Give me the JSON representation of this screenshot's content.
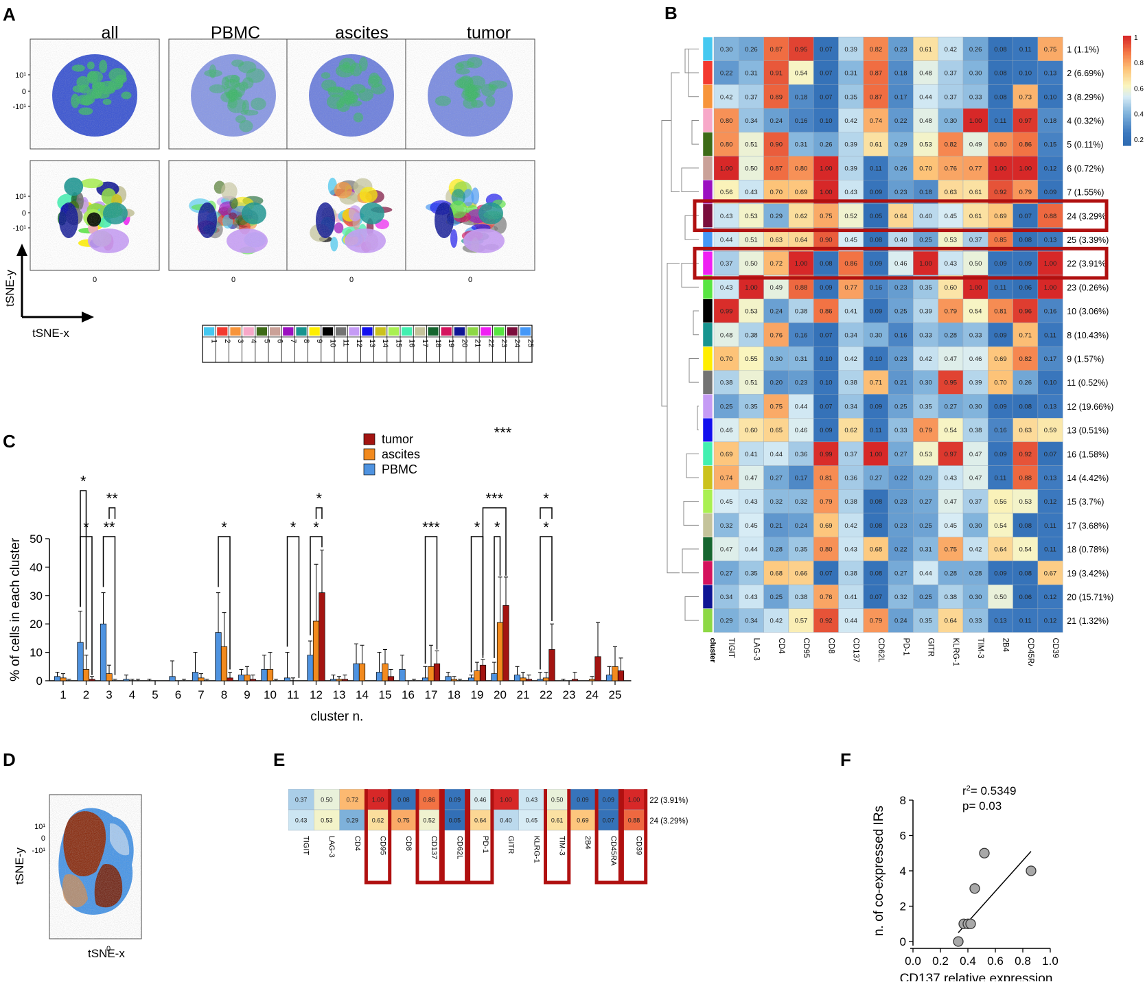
{
  "panel_labels": [
    "A",
    "B",
    "C",
    "D",
    "E",
    "F"
  ],
  "panelA": {
    "columns": [
      "all",
      "PBMC",
      "ascites",
      "tumor"
    ],
    "ytick_labels": [
      "10¹",
      "0",
      "-10¹"
    ],
    "xtick_label": "0",
    "axis_x": "tSNE-x",
    "axis_y": "tSNE-y",
    "legend_numbers": [
      "1",
      "2",
      "3",
      "4",
      "5",
      "6",
      "7",
      "8",
      "9",
      "10",
      "11",
      "12",
      "13",
      "14",
      "15",
      "16",
      "17",
      "18",
      "19",
      "20",
      "21",
      "22",
      "23",
      "24",
      "25"
    ],
    "cluster_colors": [
      "#45c8f0",
      "#f33a2f",
      "#f7943a",
      "#f7a8c8",
      "#3d6b17",
      "#caa198",
      "#9b10c0",
      "#17948f",
      "#ffee00",
      "#000000",
      "#737373",
      "#c59bf5",
      "#1210ee",
      "#cbc21c",
      "#a9f052",
      "#42f0b0",
      "#c4c39a",
      "#166630",
      "#d4135d",
      "#0e1594",
      "#8dd845",
      "#ef20f3",
      "#58e542",
      "#7b0d3c",
      "#4598f7"
    ]
  },
  "panelB": {
    "markers": [
      "TIGIT",
      "LAG-3",
      "CD4",
      "CD95",
      "CD8",
      "CD137",
      "CD62L",
      "PD-1",
      "GITR",
      "KLRG-1",
      "TIM-3",
      "2B4",
      "CD45RA",
      "CD39"
    ],
    "cluster_col_label": "cluster",
    "colorbar_ticks": [
      "1",
      "0.8",
      "0.6",
      "0.4",
      "0.2"
    ],
    "rows": [
      {
        "label": "1 (1.1%)",
        "color": "#45c8f0",
        "values": [
          0.3,
          0.26,
          0.87,
          0.95,
          0.07,
          0.39,
          0.82,
          0.23,
          0.61,
          0.42,
          0.26,
          0.08,
          0.11,
          0.75
        ]
      },
      {
        "label": "2 (6.69%)",
        "color": "#f33a2f",
        "values": [
          0.22,
          0.31,
          0.91,
          0.54,
          0.07,
          0.31,
          0.87,
          0.18,
          0.48,
          0.37,
          0.3,
          0.08,
          0.1,
          0.13
        ]
      },
      {
        "label": "3 (8.29%)",
        "color": "#f7943a",
        "values": [
          0.42,
          0.37,
          0.89,
          0.18,
          0.07,
          0.35,
          0.87,
          0.17,
          0.44,
          0.37,
          0.33,
          0.08,
          0.73,
          0.1
        ]
      },
      {
        "label": "4 (0.32%)",
        "color": "#f7a8c8",
        "values": [
          0.8,
          0.34,
          0.24,
          0.16,
          0.1,
          0.42,
          0.74,
          0.22,
          0.48,
          0.3,
          1.0,
          0.11,
          0.97,
          0.18
        ]
      },
      {
        "label": "5 (0.11%)",
        "color": "#3d6b17",
        "values": [
          0.8,
          0.51,
          0.9,
          0.31,
          0.26,
          0.39,
          0.61,
          0.29,
          0.53,
          0.82,
          0.49,
          0.8,
          0.86,
          0.15
        ]
      },
      {
        "label": "6 (0.72%)",
        "color": "#caa198",
        "values": [
          1.0,
          0.5,
          0.87,
          0.8,
          1.0,
          0.39,
          0.11,
          0.26,
          0.7,
          0.76,
          0.77,
          1.0,
          1.0,
          0.12
        ]
      },
      {
        "label": "7 (1.55%)",
        "color": "#9b10c0",
        "values": [
          0.56,
          0.43,
          0.7,
          0.69,
          1.0,
          0.43,
          0.09,
          0.23,
          0.18,
          0.63,
          0.61,
          0.92,
          0.79,
          0.09
        ]
      },
      {
        "label": "24 (3.29%)",
        "color": "#7b0d3c",
        "values": [
          0.43,
          0.53,
          0.29,
          0.62,
          0.75,
          0.52,
          0.05,
          0.64,
          0.4,
          0.45,
          0.61,
          0.69,
          0.07,
          0.88
        ]
      },
      {
        "label": "25 (3.39%)",
        "color": "#4598f7",
        "values": [
          0.44,
          0.51,
          0.63,
          0.64,
          0.9,
          0.45,
          0.08,
          0.4,
          0.25,
          0.53,
          0.37,
          0.85,
          0.08,
          0.13
        ]
      },
      {
        "label": "22 (3.91%)",
        "color": "#ef20f3",
        "values": [
          0.37,
          0.5,
          0.72,
          1.0,
          0.08,
          0.86,
          0.09,
          0.46,
          1.0,
          0.43,
          0.5,
          0.09,
          0.09,
          1.0
        ]
      },
      {
        "label": "23 (0.26%)",
        "color": "#58e542",
        "values": [
          0.43,
          1.0,
          0.49,
          0.88,
          0.09,
          0.77,
          0.16,
          0.23,
          0.35,
          0.6,
          1.0,
          0.11,
          0.06,
          1.0
        ]
      },
      {
        "label": "10 (3.06%)",
        "color": "#000000",
        "values": [
          0.99,
          0.53,
          0.24,
          0.38,
          0.86,
          0.41,
          0.09,
          0.25,
          0.39,
          0.79,
          0.54,
          0.81,
          0.96,
          0.16
        ]
      },
      {
        "label": "8 (10.43%)",
        "color": "#17948f",
        "values": [
          0.48,
          0.38,
          0.76,
          0.16,
          0.07,
          0.34,
          0.3,
          0.16,
          0.33,
          0.28,
          0.33,
          0.09,
          0.71,
          0.11
        ]
      },
      {
        "label": "9 (1.57%)",
        "color": "#ffee00",
        "values": [
          0.7,
          0.55,
          0.3,
          0.31,
          0.1,
          0.42,
          0.1,
          0.23,
          0.42,
          0.47,
          0.46,
          0.69,
          0.82,
          0.17
        ]
      },
      {
        "label": "11 (0.52%)",
        "color": "#737373",
        "values": [
          0.38,
          0.51,
          0.2,
          0.23,
          0.1,
          0.38,
          0.71,
          0.21,
          0.3,
          0.95,
          0.39,
          0.7,
          0.26,
          0.1
        ]
      },
      {
        "label": "12 (19.66%)",
        "color": "#c59bf5",
        "values": [
          0.25,
          0.35,
          0.75,
          0.44,
          0.07,
          0.34,
          0.09,
          0.25,
          0.35,
          0.27,
          0.3,
          0.09,
          0.08,
          0.13
        ]
      },
      {
        "label": "13 (0.51%)",
        "color": "#1210ee",
        "values": [
          0.46,
          0.6,
          0.65,
          0.46,
          0.09,
          0.62,
          0.11,
          0.33,
          0.79,
          0.54,
          0.38,
          0.16,
          0.63,
          0.59
        ]
      },
      {
        "label": "16 (1.58%)",
        "color": "#42f0b0",
        "values": [
          0.69,
          0.41,
          0.44,
          0.36,
          0.99,
          0.37,
          1.0,
          0.27,
          0.53,
          0.97,
          0.47,
          0.09,
          0.92,
          0.07
        ]
      },
      {
        "label": "14 (4.42%)",
        "color": "#cbc21c",
        "values": [
          0.74,
          0.47,
          0.27,
          0.17,
          0.81,
          0.36,
          0.27,
          0.22,
          0.29,
          0.43,
          0.47,
          0.11,
          0.88,
          0.13
        ]
      },
      {
        "label": "15 (3.7%)",
        "color": "#a9f052",
        "values": [
          0.45,
          0.43,
          0.32,
          0.32,
          0.79,
          0.38,
          0.08,
          0.23,
          0.27,
          0.47,
          0.37,
          0.56,
          0.53,
          0.12
        ]
      },
      {
        "label": "17 (3.68%)",
        "color": "#c4c39a",
        "values": [
          0.32,
          0.45,
          0.21,
          0.24,
          0.69,
          0.42,
          0.08,
          0.23,
          0.25,
          0.45,
          0.3,
          0.54,
          0.08,
          0.11
        ]
      },
      {
        "label": "18 (0.78%)",
        "color": "#166630",
        "values": [
          0.47,
          0.44,
          0.28,
          0.35,
          0.8,
          0.43,
          0.68,
          0.22,
          0.31,
          0.75,
          0.42,
          0.64,
          0.54,
          0.11
        ]
      },
      {
        "label": "19 (3.42%)",
        "color": "#d4135d",
        "values": [
          0.27,
          0.35,
          0.68,
          0.66,
          0.07,
          0.38,
          0.08,
          0.27,
          0.44,
          0.28,
          0.28,
          0.09,
          0.08,
          0.67
        ]
      },
      {
        "label": "20 (15.71%)",
        "color": "#0e1594",
        "values": [
          0.34,
          0.43,
          0.25,
          0.38,
          0.76,
          0.41,
          0.07,
          0.32,
          0.25,
          0.38,
          0.3,
          0.5,
          0.06,
          0.12
        ]
      },
      {
        "label": "21 (1.32%)",
        "color": "#8dd845",
        "values": [
          0.29,
          0.34,
          0.42,
          0.57,
          0.92,
          0.44,
          0.79,
          0.24,
          0.35,
          0.64,
          0.33,
          0.13,
          0.11,
          0.12
        ]
      }
    ]
  },
  "chart_data": [
    {
      "type": "bar",
      "panel": "C",
      "categories": [
        "1",
        "2",
        "3",
        "4",
        "5",
        "6",
        "7",
        "8",
        "9",
        "10",
        "11",
        "12",
        "13",
        "14",
        "15",
        "16",
        "17",
        "18",
        "19",
        "20",
        "21",
        "22",
        "23",
        "24",
        "25"
      ],
      "series": [
        {
          "name": "PBMC",
          "color": "#4f93e0",
          "values": [
            1.5,
            13.5,
            20,
            0.5,
            0,
            1.5,
            3,
            17,
            2,
            4,
            1,
            9,
            0.5,
            6,
            3,
            4,
            1,
            1.5,
            1,
            2.5,
            2,
            0.5,
            0,
            0,
            2
          ],
          "errors": [
            1.5,
            11,
            11,
            1.5,
            0.5,
            5.5,
            7,
            14,
            2,
            5,
            9,
            5,
            1.5,
            7,
            7,
            5,
            4,
            1.5,
            1,
            4,
            3,
            2.5,
            0.5,
            0,
            3
          ]
        },
        {
          "name": "ascites",
          "color": "#f28a1e",
          "values": [
            1,
            4,
            2.5,
            0,
            0,
            0,
            1,
            12,
            2,
            4,
            0,
            21,
            0.5,
            6,
            6,
            0,
            5,
            0.5,
            3.5,
            20.5,
            1,
            1,
            0,
            0.5,
            5
          ],
          "errors": [
            1.5,
            5,
            3,
            0.5,
            0,
            0,
            1.5,
            12,
            3,
            6,
            1,
            20,
            1,
            6.5,
            5,
            0,
            7.5,
            1,
            3,
            16,
            2,
            2,
            0,
            1,
            7
          ]
        },
        {
          "name": "tumor",
          "color": "#a31411",
          "values": [
            0,
            0.5,
            0,
            0,
            0,
            0,
            0,
            1,
            0.5,
            0,
            0,
            31,
            0.5,
            0,
            1.5,
            0,
            6,
            0,
            5.5,
            26.5,
            0.5,
            11,
            0.5,
            8.5,
            3.5
          ],
          "errors": [
            0.5,
            1,
            0.5,
            0.5,
            0,
            0.5,
            0.5,
            2,
            1.5,
            0.5,
            0,
            15,
            1.5,
            0,
            2.5,
            0.5,
            4.5,
            0.5,
            2,
            10,
            1.5,
            9,
            2.5,
            12,
            4.5
          ]
        }
      ],
      "ylabel": "% of cells in each cluster",
      "xlabel": "cluster n.",
      "ylim": [
        0,
        50
      ],
      "yticks": [
        0,
        10,
        20,
        30,
        40,
        50
      ],
      "legend": [
        "tumor",
        "ascites",
        "PBMC"
      ],
      "significance": [
        {
          "cluster": "2",
          "pair": "PBMC-ascites",
          "label": "*"
        },
        {
          "cluster": "2",
          "pair": "PBMC-tumor",
          "label": "*"
        },
        {
          "cluster": "3",
          "pair": "ascites-tumor",
          "label": "**"
        },
        {
          "cluster": "3",
          "pair": "PBMC-tumor",
          "label": "**"
        },
        {
          "cluster": "8",
          "pair": "PBMC-tumor",
          "label": "*"
        },
        {
          "cluster": "11",
          "pair": "PBMC-tumor",
          "label": "*"
        },
        {
          "cluster": "12",
          "pair": "PBMC-tumor",
          "label": "*"
        },
        {
          "cluster": "12",
          "pair": "ascites-tumor",
          "label": "*"
        },
        {
          "cluster": "17",
          "pair": "PBMC-tumor",
          "label": "***"
        },
        {
          "cluster": "19",
          "pair": "PBMC-tumor",
          "label": "*"
        },
        {
          "cluster": "19-20",
          "pair": "tumor",
          "label": "***"
        },
        {
          "cluster": "20",
          "pair": "PBMC-ascites",
          "label": "*"
        },
        {
          "cluster": "20",
          "pair": "PBMC-tumor",
          "label": "***"
        },
        {
          "cluster": "22",
          "pair": "PBMC-tumor",
          "label": "*"
        },
        {
          "cluster": "22",
          "pair": "ascites-tumor",
          "label": "*"
        }
      ]
    },
    {
      "type": "scatter",
      "panel": "F",
      "points": [
        [
          0.33,
          0
        ],
        [
          0.37,
          1
        ],
        [
          0.4,
          1
        ],
        [
          0.42,
          1
        ],
        [
          0.45,
          3
        ],
        [
          0.52,
          5
        ],
        [
          0.86,
          4
        ]
      ],
      "fit_line": [
        [
          0.33,
          0.5
        ],
        [
          0.86,
          5.1
        ]
      ],
      "xlabel": "CD137 relative expression",
      "ylabel": "n. of co-expressed IRs",
      "xlim": [
        0,
        1.0
      ],
      "ylim": [
        0,
        8
      ],
      "xticks": [
        "0.0",
        "0.2",
        "0.4",
        "0.6",
        "0.8",
        "1.0"
      ],
      "yticks": [
        "0",
        "2",
        "4",
        "6",
        "8"
      ],
      "stat_r2_label": "r",
      "stat_r2_sup": "2",
      "stat_r2_value": "= 0.5349",
      "stat_p": "p= 0.03"
    }
  ],
  "panelD": {
    "axis_x": "tSNE-x",
    "axis_y": "tSNE-y",
    "ytick_labels": [
      "10¹",
      "0",
      "-10¹"
    ],
    "xtick_label": "0"
  },
  "panelE": {
    "markers": [
      "TIGIT",
      "LAG-3",
      "CD4",
      "CD95",
      "CD8",
      "CD137",
      "CD62L",
      "PD-1",
      "GITR",
      "KLRG-1",
      "TIM-3",
      "2B4",
      "CD45RA",
      "CD39"
    ],
    "rows": [
      {
        "label": "22 (3.91%)",
        "values": [
          0.37,
          0.5,
          0.72,
          1.0,
          0.08,
          0.86,
          0.09,
          0.46,
          1.0,
          0.43,
          0.5,
          0.09,
          0.09,
          1.0
        ]
      },
      {
        "label": "24 (3.29%)",
        "values": [
          0.43,
          0.53,
          0.29,
          0.62,
          0.75,
          0.52,
          0.05,
          0.64,
          0.4,
          0.45,
          0.61,
          0.69,
          0.07,
          0.88
        ]
      }
    ],
    "highlighted": [
      "CD95",
      "CD137",
      "CD62L",
      "PD-1",
      "TIM-3",
      "CD45RA",
      "CD39"
    ]
  }
}
